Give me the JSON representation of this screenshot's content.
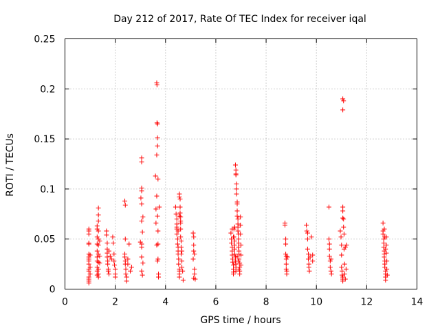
{
  "chart_data": {
    "type": "scatter",
    "title": "Day 212 of 2017, Rate Of TEC Index for receiver iqal",
    "xlabel": "GPS time / hours",
    "ylabel": "ROTI / TECUs",
    "xlim": [
      0,
      14
    ],
    "ylim": [
      0,
      0.25
    ],
    "xticks": [
      0,
      2,
      4,
      6,
      8,
      10,
      12,
      14
    ],
    "xtick_labels": [
      "0",
      "2",
      "4",
      "6",
      "8",
      "10",
      "12",
      "14"
    ],
    "yticks": [
      0,
      0.05,
      0.1,
      0.15,
      0.2,
      0.25
    ],
    "ytick_labels": [
      "0",
      "0.05",
      "0.1",
      "0.15",
      "0.2",
      "0.25"
    ],
    "grid": true,
    "marker": "+",
    "color": "#ff0000",
    "series": [
      {
        "name": "ROTI",
        "points": [
          [
            0.95,
            0.06
          ],
          [
            0.95,
            0.058
          ],
          [
            0.95,
            0.055
          ],
          [
            0.95,
            0.046
          ],
          [
            0.95,
            0.045
          ],
          [
            0.95,
            0.035
          ],
          [
            0.95,
            0.032
          ],
          [
            0.95,
            0.03
          ],
          [
            0.95,
            0.028
          ],
          [
            0.95,
            0.025
          ],
          [
            0.95,
            0.02
          ],
          [
            0.95,
            0.018
          ],
          [
            0.95,
            0.012
          ],
          [
            0.95,
            0.01
          ],
          [
            0.95,
            0.008
          ],
          [
            0.95,
            0.006
          ],
          [
            1.0,
            0.034
          ],
          [
            1.0,
            0.022
          ],
          [
            1.0,
            0.015
          ],
          [
            1.28,
            0.063
          ],
          [
            1.28,
            0.06
          ],
          [
            1.28,
            0.052
          ],
          [
            1.28,
            0.045
          ],
          [
            1.28,
            0.038
          ],
          [
            1.28,
            0.032
          ],
          [
            1.28,
            0.028
          ],
          [
            1.28,
            0.022
          ],
          [
            1.28,
            0.018
          ],
          [
            1.28,
            0.014
          ],
          [
            1.33,
            0.081
          ],
          [
            1.33,
            0.074
          ],
          [
            1.33,
            0.068
          ],
          [
            1.33,
            0.058
          ],
          [
            1.33,
            0.05
          ],
          [
            1.33,
            0.044
          ],
          [
            1.33,
            0.035
          ],
          [
            1.33,
            0.027
          ],
          [
            1.33,
            0.02
          ],
          [
            1.33,
            0.015
          ],
          [
            1.33,
            0.012
          ],
          [
            1.38,
            0.048
          ],
          [
            1.38,
            0.033
          ],
          [
            1.38,
            0.026
          ],
          [
            1.65,
            0.058
          ],
          [
            1.65,
            0.054
          ],
          [
            1.68,
            0.046
          ],
          [
            1.68,
            0.04
          ],
          [
            1.68,
            0.036
          ],
          [
            1.68,
            0.032
          ],
          [
            1.7,
            0.028
          ],
          [
            1.7,
            0.025
          ],
          [
            1.72,
            0.02
          ],
          [
            1.72,
            0.018
          ],
          [
            1.75,
            0.015
          ],
          [
            1.75,
            0.038
          ],
          [
            1.8,
            0.033
          ],
          [
            1.85,
            0.03
          ],
          [
            1.9,
            0.052
          ],
          [
            1.92,
            0.046
          ],
          [
            1.95,
            0.035
          ],
          [
            1.95,
            0.028
          ],
          [
            1.97,
            0.024
          ],
          [
            2.0,
            0.02
          ],
          [
            2.0,
            0.015
          ],
          [
            2.0,
            0.012
          ],
          [
            2.38,
            0.088
          ],
          [
            2.4,
            0.084
          ],
          [
            2.4,
            0.05
          ],
          [
            2.38,
            0.035
          ],
          [
            2.38,
            0.032
          ],
          [
            2.4,
            0.028
          ],
          [
            2.4,
            0.025
          ],
          [
            2.42,
            0.02
          ],
          [
            2.42,
            0.015
          ],
          [
            2.45,
            0.012
          ],
          [
            2.45,
            0.008
          ],
          [
            2.5,
            0.03
          ],
          [
            2.5,
            0.025
          ],
          [
            2.55,
            0.045
          ],
          [
            2.6,
            0.018
          ],
          [
            2.65,
            0.022
          ],
          [
            3.0,
            0.047
          ],
          [
            3.05,
            0.131
          ],
          [
            3.05,
            0.127
          ],
          [
            3.05,
            0.101
          ],
          [
            3.05,
            0.098
          ],
          [
            3.02,
            0.091
          ],
          [
            3.05,
            0.085
          ],
          [
            3.05,
            0.068
          ],
          [
            3.08,
            0.057
          ],
          [
            3.05,
            0.042
          ],
          [
            3.05,
            0.032
          ],
          [
            3.1,
            0.026
          ],
          [
            3.05,
            0.018
          ],
          [
            3.08,
            0.014
          ],
          [
            3.1,
            0.072
          ],
          [
            3.05,
            0.045
          ],
          [
            3.6,
            0.113
          ],
          [
            3.62,
            0.08
          ],
          [
            3.62,
            0.066
          ],
          [
            3.65,
            0.206
          ],
          [
            3.66,
            0.204
          ],
          [
            3.66,
            0.166
          ],
          [
            3.68,
            0.165
          ],
          [
            3.68,
            0.151
          ],
          [
            3.68,
            0.143
          ],
          [
            3.65,
            0.134
          ],
          [
            3.7,
            0.11
          ],
          [
            3.65,
            0.093
          ],
          [
            3.68,
            0.073
          ],
          [
            3.7,
            0.058
          ],
          [
            3.7,
            0.045
          ],
          [
            3.65,
            0.044
          ],
          [
            3.7,
            0.03
          ],
          [
            3.68,
            0.028
          ],
          [
            3.72,
            0.015
          ],
          [
            3.72,
            0.012
          ],
          [
            3.75,
            0.082
          ],
          [
            4.4,
            0.082
          ],
          [
            4.42,
            0.075
          ],
          [
            4.45,
            0.07
          ],
          [
            4.45,
            0.065
          ],
          [
            4.45,
            0.06
          ],
          [
            4.45,
            0.055
          ],
          [
            4.48,
            0.05
          ],
          [
            4.48,
            0.045
          ],
          [
            4.5,
            0.042
          ],
          [
            4.5,
            0.038
          ],
          [
            4.5,
            0.035
          ],
          [
            4.52,
            0.03
          ],
          [
            4.52,
            0.025
          ],
          [
            4.55,
            0.02
          ],
          [
            4.55,
            0.018
          ],
          [
            4.55,
            0.015
          ],
          [
            4.55,
            0.012
          ],
          [
            4.55,
            0.095
          ],
          [
            4.55,
            0.092
          ],
          [
            4.58,
            0.09
          ],
          [
            4.58,
            0.082
          ],
          [
            4.58,
            0.076
          ],
          [
            4.6,
            0.072
          ],
          [
            4.6,
            0.066
          ],
          [
            4.6,
            0.06
          ],
          [
            4.6,
            0.052
          ],
          [
            4.62,
            0.048
          ],
          [
            4.62,
            0.042
          ],
          [
            4.62,
            0.035
          ],
          [
            4.65,
            0.028
          ],
          [
            4.65,
            0.022
          ],
          [
            4.68,
            0.018
          ],
          [
            4.7,
            0.009
          ],
          [
            4.45,
            0.062
          ],
          [
            4.5,
            0.058
          ],
          [
            4.55,
            0.073
          ],
          [
            4.6,
            0.068
          ],
          [
            4.65,
            0.038
          ],
          [
            5.1,
            0.056
          ],
          [
            5.12,
            0.052
          ],
          [
            5.12,
            0.044
          ],
          [
            5.12,
            0.038
          ],
          [
            5.15,
            0.035
          ],
          [
            5.15,
            0.02
          ],
          [
            5.15,
            0.015
          ],
          [
            5.12,
            0.011
          ],
          [
            5.18,
            0.01
          ],
          [
            5.1,
            0.03
          ],
          [
            6.6,
            0.056
          ],
          [
            6.62,
            0.05
          ],
          [
            6.62,
            0.046
          ],
          [
            6.65,
            0.042
          ],
          [
            6.65,
            0.038
          ],
          [
            6.65,
            0.034
          ],
          [
            6.67,
            0.03
          ],
          [
            6.67,
            0.027
          ],
          [
            6.7,
            0.024
          ],
          [
            6.7,
            0.02
          ],
          [
            6.7,
            0.017
          ],
          [
            6.7,
            0.015
          ],
          [
            6.72,
            0.06
          ],
          [
            6.72,
            0.052
          ],
          [
            6.75,
            0.048
          ],
          [
            6.75,
            0.044
          ],
          [
            6.75,
            0.04
          ],
          [
            6.75,
            0.035
          ],
          [
            6.78,
            0.032
          ],
          [
            6.78,
            0.028
          ],
          [
            6.8,
            0.025
          ],
          [
            6.8,
            0.022
          ],
          [
            6.8,
            0.018
          ],
          [
            6.78,
            0.124
          ],
          [
            6.8,
            0.119
          ],
          [
            6.8,
            0.115
          ],
          [
            6.8,
            0.114
          ],
          [
            6.82,
            0.105
          ],
          [
            6.82,
            0.1
          ],
          [
            6.82,
            0.095
          ],
          [
            6.85,
            0.087
          ],
          [
            6.85,
            0.085
          ],
          [
            6.85,
            0.078
          ],
          [
            6.85,
            0.073
          ],
          [
            6.88,
            0.07
          ],
          [
            6.88,
            0.065
          ],
          [
            6.88,
            0.062
          ],
          [
            6.88,
            0.058
          ],
          [
            6.9,
            0.055
          ],
          [
            6.9,
            0.05
          ],
          [
            6.9,
            0.046
          ],
          [
            6.9,
            0.042
          ],
          [
            6.92,
            0.038
          ],
          [
            6.92,
            0.035
          ],
          [
            6.92,
            0.03
          ],
          [
            6.95,
            0.026
          ],
          [
            6.95,
            0.022
          ],
          [
            6.95,
            0.018
          ],
          [
            6.95,
            0.015
          ],
          [
            6.98,
            0.072
          ],
          [
            6.98,
            0.064
          ],
          [
            6.98,
            0.055
          ],
          [
            7.0,
            0.044
          ],
          [
            7.0,
            0.034
          ],
          [
            7.0,
            0.024
          ],
          [
            6.65,
            0.06
          ],
          [
            6.7,
            0.052
          ],
          [
            6.75,
            0.062
          ],
          [
            6.85,
            0.033
          ],
          [
            6.9,
            0.028
          ],
          [
            6.92,
            0.02
          ],
          [
            8.75,
            0.066
          ],
          [
            8.75,
            0.064
          ],
          [
            8.78,
            0.05
          ],
          [
            8.78,
            0.045
          ],
          [
            8.78,
            0.035
          ],
          [
            8.8,
            0.033
          ],
          [
            8.8,
            0.03
          ],
          [
            8.8,
            0.025
          ],
          [
            8.8,
            0.02
          ],
          [
            8.82,
            0.018
          ],
          [
            8.82,
            0.015
          ],
          [
            8.85,
            0.032
          ],
          [
            9.6,
            0.064
          ],
          [
            9.62,
            0.058
          ],
          [
            9.65,
            0.056
          ],
          [
            9.65,
            0.05
          ],
          [
            9.65,
            0.04
          ],
          [
            9.68,
            0.035
          ],
          [
            9.68,
            0.03
          ],
          [
            9.7,
            0.025
          ],
          [
            9.7,
            0.022
          ],
          [
            9.72,
            0.018
          ],
          [
            9.75,
            0.032
          ],
          [
            9.8,
            0.052
          ],
          [
            9.85,
            0.034
          ],
          [
            9.85,
            0.028
          ],
          [
            10.5,
            0.082
          ],
          [
            10.5,
            0.05
          ],
          [
            10.52,
            0.045
          ],
          [
            10.52,
            0.04
          ],
          [
            10.52,
            0.033
          ],
          [
            10.55,
            0.028
          ],
          [
            10.55,
            0.022
          ],
          [
            10.58,
            0.018
          ],
          [
            10.6,
            0.015
          ],
          [
            10.58,
            0.03
          ],
          [
            10.95,
            0.058
          ],
          [
            10.98,
            0.052
          ],
          [
            11.0,
            0.044
          ],
          [
            11.0,
            0.034
          ],
          [
            11.0,
            0.022
          ],
          [
            11.02,
            0.018
          ],
          [
            11.02,
            0.014
          ],
          [
            11.05,
            0.012
          ],
          [
            11.05,
            0.01
          ],
          [
            11.05,
            0.008
          ],
          [
            11.05,
            0.082
          ],
          [
            11.05,
            0.078
          ],
          [
            11.05,
            0.071
          ],
          [
            11.08,
            0.07
          ],
          [
            11.08,
            0.062
          ],
          [
            11.1,
            0.055
          ],
          [
            11.1,
            0.04
          ],
          [
            11.12,
            0.025
          ],
          [
            11.12,
            0.015
          ],
          [
            11.15,
            0.01
          ],
          [
            11.15,
            0.042
          ],
          [
            11.18,
            0.02
          ],
          [
            11.2,
            0.044
          ],
          [
            11.05,
            0.19
          ],
          [
            11.08,
            0.188
          ],
          [
            11.05,
            0.179
          ],
          [
            12.65,
            0.066
          ],
          [
            12.65,
            0.058
          ],
          [
            12.65,
            0.055
          ],
          [
            12.68,
            0.05
          ],
          [
            12.68,
            0.046
          ],
          [
            12.68,
            0.042
          ],
          [
            12.7,
            0.038
          ],
          [
            12.7,
            0.035
          ],
          [
            12.7,
            0.032
          ],
          [
            12.72,
            0.028
          ],
          [
            12.72,
            0.025
          ],
          [
            12.72,
            0.022
          ],
          [
            12.75,
            0.018
          ],
          [
            12.75,
            0.015
          ],
          [
            12.75,
            0.012
          ],
          [
            12.75,
            0.009
          ],
          [
            12.78,
            0.052
          ],
          [
            12.78,
            0.044
          ],
          [
            12.78,
            0.036
          ],
          [
            12.8,
            0.028
          ],
          [
            12.8,
            0.02
          ],
          [
            12.82,
            0.014
          ],
          [
            12.7,
            0.06
          ],
          [
            12.72,
            0.052
          ],
          [
            12.75,
            0.04
          ]
        ]
      }
    ]
  }
}
